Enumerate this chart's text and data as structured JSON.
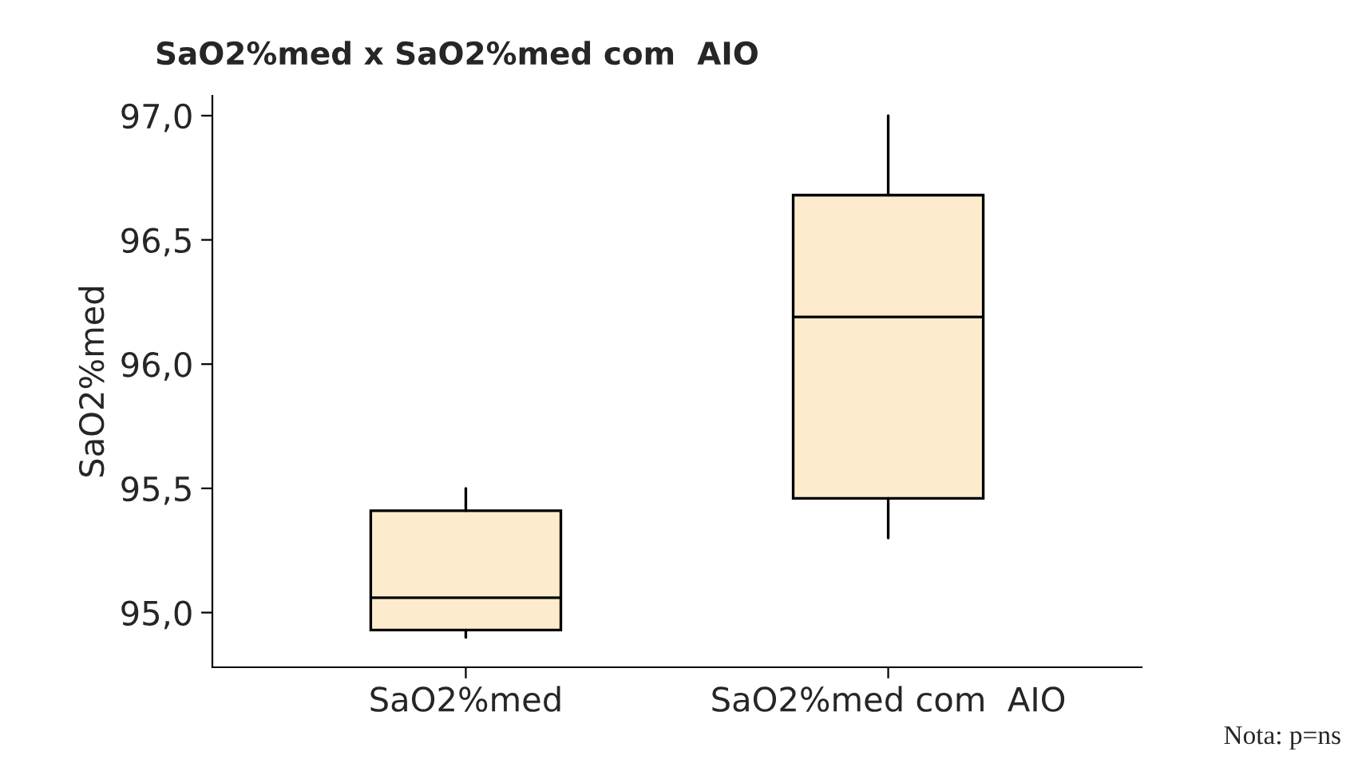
{
  "chart_data": {
    "type": "box",
    "title": "SaO2%med x SaO2%med com  AIO",
    "ylabel": "SaO2%med",
    "categories": [
      "SaO2%med",
      "SaO2%med com  AIO"
    ],
    "boxes": [
      {
        "low": 94.9,
        "q1": 94.93,
        "median": 95.06,
        "q3": 95.41,
        "high": 95.5
      },
      {
        "low": 95.3,
        "q1": 95.46,
        "median": 96.19,
        "q3": 96.68,
        "high": 97.0
      }
    ],
    "color": "#fdebcd",
    "ylim": [
      94.78,
      97.08
    ],
    "yticks": [
      {
        "value": 95.0,
        "label": "95,0"
      },
      {
        "value": 95.5,
        "label": "95,5"
      },
      {
        "value": 96.0,
        "label": "96,0"
      },
      {
        "value": 96.5,
        "label": "96,5"
      },
      {
        "value": 97.0,
        "label": "97,0"
      }
    ],
    "grid": false,
    "annotations": [
      "Nota: p=ns"
    ]
  }
}
